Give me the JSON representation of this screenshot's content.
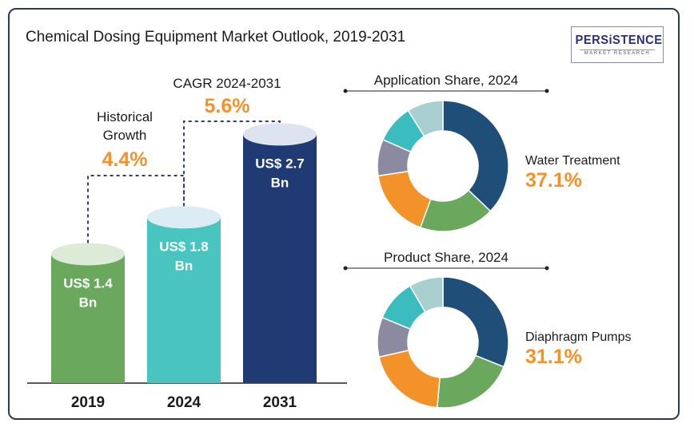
{
  "title": "Chemical Dosing Equipment Market Outlook, 2019-2031",
  "logo": {
    "brand": "PERSiSTENCE",
    "sub": "MARKET RESEARCH"
  },
  "colors": {
    "bar_2019": "#6aa85e",
    "bar_2024": "#49c4c0",
    "bar_2031": "#203a73",
    "accent": "#f4922a",
    "dash": "#2b3f78",
    "donut": [
      "#1f4e79",
      "#6aa85e",
      "#f4922a",
      "#8c8aa1",
      "#3bbdc0",
      "#a8cfcf"
    ]
  },
  "chart_data": [
    {
      "type": "bar",
      "categories": [
        "2019",
        "2024",
        "2031"
      ],
      "values": [
        1.4,
        1.8,
        2.7
      ],
      "value_labels": [
        [
          "US$ 1.4",
          "Bn"
        ],
        [
          "US$ 1.8",
          "Bn"
        ],
        [
          "US$ 2.7",
          "Bn"
        ]
      ],
      "annotations": [
        {
          "label_lines": [
            "Historical",
            "Growth"
          ],
          "value": "4.4%"
        },
        {
          "label_lines": [
            "CAGR 2024-2031"
          ],
          "value": "5.6%"
        }
      ]
    },
    {
      "type": "pie",
      "title": "Application Share, 2024",
      "highlight": {
        "name": "Water Treatment",
        "value": "37.1%"
      },
      "values": [
        37.1,
        18.5,
        17.0,
        9.0,
        9.5,
        8.9
      ]
    },
    {
      "type": "pie",
      "title": "Product Share, 2024",
      "highlight": {
        "name": "Diaphragm Pumps",
        "value": "31.1%"
      },
      "values": [
        31.1,
        20.3,
        20.0,
        9.8,
        10.4,
        8.4
      ]
    }
  ]
}
